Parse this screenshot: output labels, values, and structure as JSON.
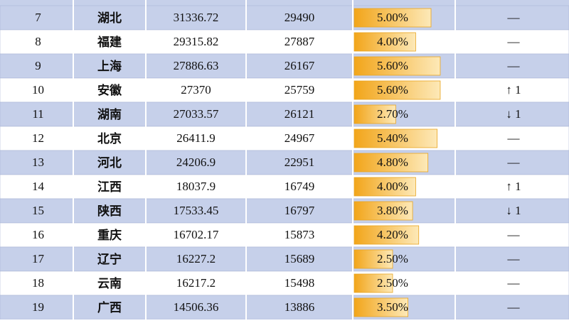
{
  "table": {
    "rows": [
      {
        "rank": 7,
        "province": "湖北",
        "gdp": 31336.72,
        "prev": 29490,
        "growth": {
          "value": 5.0,
          "label": "5.00%"
        },
        "change": "—"
      },
      {
        "rank": 8,
        "province": "福建",
        "gdp": 29315.82,
        "prev": 27887,
        "growth": {
          "value": 4.0,
          "label": "4.00%"
        },
        "change": "—"
      },
      {
        "rank": 9,
        "province": "上海",
        "gdp": 27886.63,
        "prev": 26167,
        "growth": {
          "value": 5.6,
          "label": "5.60%"
        },
        "change": "—"
      },
      {
        "rank": 10,
        "province": "安徽",
        "gdp": 27370,
        "prev": 25759,
        "growth": {
          "value": 5.6,
          "label": "5.60%"
        },
        "change": "↑ 1"
      },
      {
        "rank": 11,
        "province": "湖南",
        "gdp": 27033.57,
        "prev": 26121,
        "growth": {
          "value": 2.7,
          "label": "2.70%"
        },
        "change": "↓ 1"
      },
      {
        "rank": 12,
        "province": "北京",
        "gdp": 26411.9,
        "prev": 24967,
        "growth": {
          "value": 5.4,
          "label": "5.40%"
        },
        "change": "—"
      },
      {
        "rank": 13,
        "province": "河北",
        "gdp": 24206.9,
        "prev": 22951,
        "growth": {
          "value": 4.8,
          "label": "4.80%"
        },
        "change": "—"
      },
      {
        "rank": 14,
        "province": "江西",
        "gdp": 18037.9,
        "prev": 16749,
        "growth": {
          "value": 4.0,
          "label": "4.00%"
        },
        "change": "↑ 1"
      },
      {
        "rank": 15,
        "province": "陕西",
        "gdp": 17533.45,
        "prev": 16797,
        "growth": {
          "value": 3.8,
          "label": "3.80%"
        },
        "change": "↓ 1"
      },
      {
        "rank": 16,
        "province": "重庆",
        "gdp": 16702.17,
        "prev": 15873,
        "growth": {
          "value": 4.2,
          "label": "4.20%"
        },
        "change": "—"
      },
      {
        "rank": 17,
        "province": "辽宁",
        "gdp": 16227.2,
        "prev": 15689,
        "growth": {
          "value": 2.5,
          "label": "2.50%"
        },
        "change": "—"
      },
      {
        "rank": 18,
        "province": "云南",
        "gdp": 16217.2,
        "prev": 15498,
        "growth": {
          "value": 2.5,
          "label": "2.50%"
        },
        "change": "—"
      },
      {
        "rank": 19,
        "province": "广西",
        "gdp": 14506.36,
        "prev": 13886,
        "growth": {
          "value": 3.5,
          "label": "3.50%"
        },
        "change": "—"
      }
    ]
  }
}
